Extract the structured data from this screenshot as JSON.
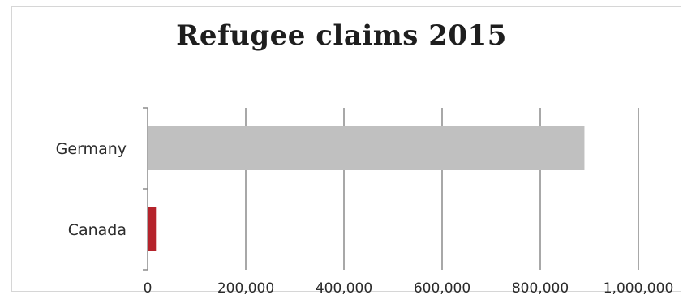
{
  "chart_data": {
    "type": "bar",
    "orientation": "horizontal",
    "title": "Refugee claims 2015",
    "categories": [
      "Germany",
      "Canada"
    ],
    "values": [
      890000,
      17000
    ],
    "bar_colors": [
      "#c0c0c0",
      "#b5232b"
    ],
    "xlim": [
      0,
      1000000
    ],
    "x_ticks": [
      0,
      200000,
      400000,
      600000,
      800000,
      1000000
    ],
    "x_tick_labels": [
      "0",
      "200,000",
      "400,000",
      "600,000",
      "800,000",
      "1,000,000"
    ],
    "grid": "vertical",
    "legend": "none"
  }
}
